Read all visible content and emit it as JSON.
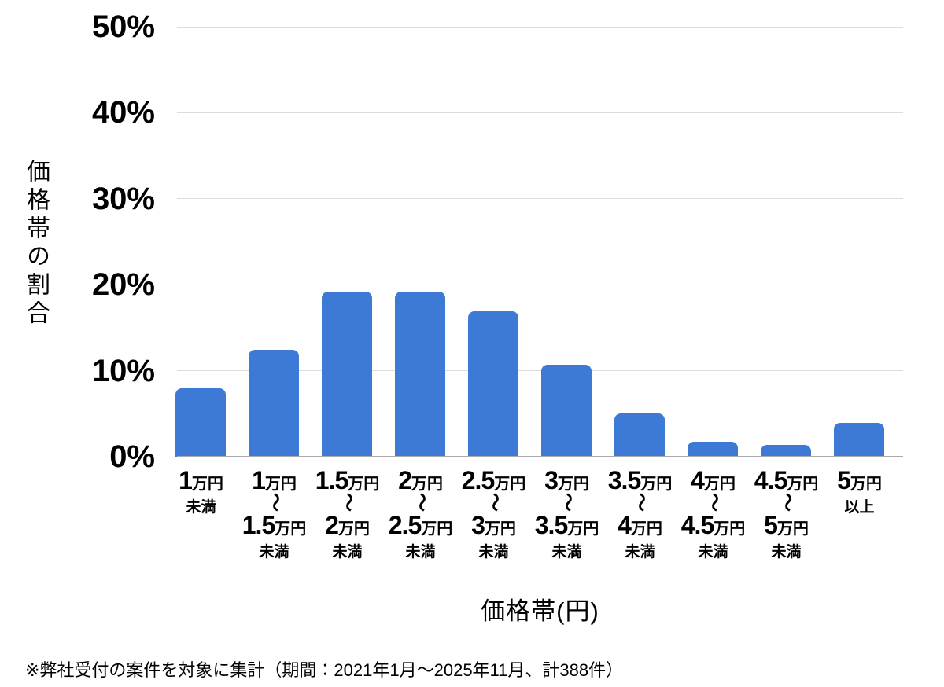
{
  "chart_data": {
    "type": "bar",
    "title": "",
    "xlabel": "価格帯(円)",
    "ylabel": "価格帯の割合",
    "categories": [
      "1万円未満",
      "1万円〜1.5万円未満",
      "1.5万円〜2万円未満",
      "2万円〜2.5万円未満",
      "2.5万円〜3万円未満",
      "3万円〜3.5万円未満",
      "3.5万円〜4万円未満",
      "4万円〜4.5万円未満",
      "4.5万円〜5万円未満",
      "5万円以上"
    ],
    "values": [
      8.0,
      12.4,
      19.2,
      19.2,
      16.9,
      10.7,
      5.0,
      1.7,
      1.4,
      3.9
    ],
    "value_unit": "%",
    "ylim": [
      0,
      50
    ],
    "yticks": [
      0,
      10,
      20,
      30,
      40,
      50
    ],
    "ytick_suffix": "%",
    "grid": true,
    "legend": false,
    "bar_color": "#3D7AD6",
    "category_labels": [
      {
        "top_num": "1",
        "top_unit": "万円",
        "tilde": "",
        "bottom_num": "",
        "bottom_unit": "",
        "suffix": "未満"
      },
      {
        "top_num": "1",
        "top_unit": "万円",
        "tilde": "〜",
        "bottom_num": "1.5",
        "bottom_unit": "万円",
        "suffix": "未満"
      },
      {
        "top_num": "1.5",
        "top_unit": "万円",
        "tilde": "〜",
        "bottom_num": "2",
        "bottom_unit": "万円",
        "suffix": "未満"
      },
      {
        "top_num": "2",
        "top_unit": "万円",
        "tilde": "〜",
        "bottom_num": "2.5",
        "bottom_unit": "万円",
        "suffix": "未満"
      },
      {
        "top_num": "2.5",
        "top_unit": "万円",
        "tilde": "〜",
        "bottom_num": "3",
        "bottom_unit": "万円",
        "suffix": "未満"
      },
      {
        "top_num": "3",
        "top_unit": "万円",
        "tilde": "〜",
        "bottom_num": "3.5",
        "bottom_unit": "万円",
        "suffix": "未満"
      },
      {
        "top_num": "3.5",
        "top_unit": "万円",
        "tilde": "〜",
        "bottom_num": "4",
        "bottom_unit": "万円",
        "suffix": "未満"
      },
      {
        "top_num": "4",
        "top_unit": "万円",
        "tilde": "〜",
        "bottom_num": "4.5",
        "bottom_unit": "万円",
        "suffix": "未満"
      },
      {
        "top_num": "4.5",
        "top_unit": "万円",
        "tilde": "〜",
        "bottom_num": "5",
        "bottom_unit": "万円",
        "suffix": "未満"
      },
      {
        "top_num": "5",
        "top_unit": "万円",
        "tilde": "",
        "bottom_num": "",
        "bottom_unit": "",
        "suffix": "以上"
      }
    ]
  },
  "footnote": "※弊社受付の案件を対象に集計（期間：2021年1月〜2025年11月、計388件）",
  "colors": {
    "bar": "#3D7AD6",
    "gridline": "#DCDCDC",
    "baseline": "#ABABAB",
    "text": "#000000",
    "background": "#FFFFFF"
  }
}
